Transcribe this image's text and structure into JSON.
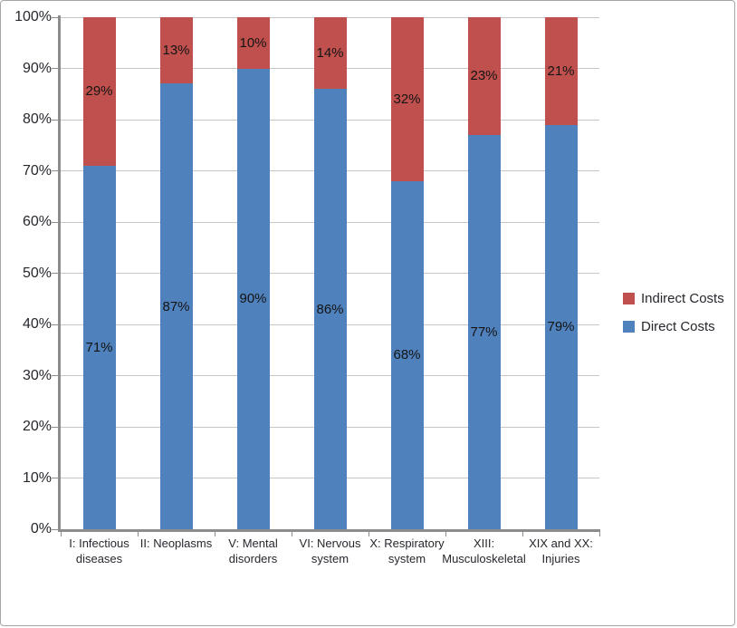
{
  "chart_data": {
    "type": "bar",
    "subtype": "stacked-100",
    "title": "",
    "xlabel": "",
    "ylabel": "",
    "categories": [
      [
        "I: Infectious",
        "diseases"
      ],
      [
        "II: Neoplasms"
      ],
      [
        "V: Mental",
        "disorders"
      ],
      [
        "VI: Nervous",
        "system"
      ],
      [
        "X: Respiratory",
        "system"
      ],
      [
        "XIII:",
        "Musculoskeletal"
      ],
      [
        "XIX and XX:",
        "Injuries"
      ]
    ],
    "series": [
      {
        "name": "Direct Costs",
        "color": "#4f81bd",
        "values": [
          71,
          87,
          90,
          86,
          68,
          77,
          79
        ],
        "labels": [
          "71%",
          "87%",
          "90%",
          "86%",
          "68%",
          "77%",
          "79%"
        ]
      },
      {
        "name": "Indirect Costs",
        "color": "#c0504d",
        "values": [
          29,
          13,
          10,
          14,
          32,
          23,
          21
        ],
        "labels": [
          "29%",
          "13%",
          "10%",
          "14%",
          "32%",
          "23%",
          "21%"
        ]
      }
    ],
    "y_ticks": [
      {
        "value": 0,
        "label": "0%"
      },
      {
        "value": 10,
        "label": "10%"
      },
      {
        "value": 20,
        "label": "20%"
      },
      {
        "value": 30,
        "label": "30%"
      },
      {
        "value": 40,
        "label": "40%"
      },
      {
        "value": 50,
        "label": "50%"
      },
      {
        "value": 60,
        "label": "60%"
      },
      {
        "value": 70,
        "label": "70%"
      },
      {
        "value": 80,
        "label": "80%"
      },
      {
        "value": 90,
        "label": "90%"
      },
      {
        "value": 100,
        "label": "100%"
      }
    ],
    "ylim": [
      0,
      100
    ],
    "grid": true,
    "legend_position": "right",
    "legend": [
      {
        "label": "Indirect Costs",
        "color": "#c0504d"
      },
      {
        "label": "Direct Costs",
        "color": "#4f81bd"
      }
    ],
    "colors": {
      "gridline": "#c6c6c6",
      "axis": "#8c8c8c",
      "axis_text": "#26282e",
      "data_label_text": "#141414",
      "background": "#ffffff"
    }
  }
}
